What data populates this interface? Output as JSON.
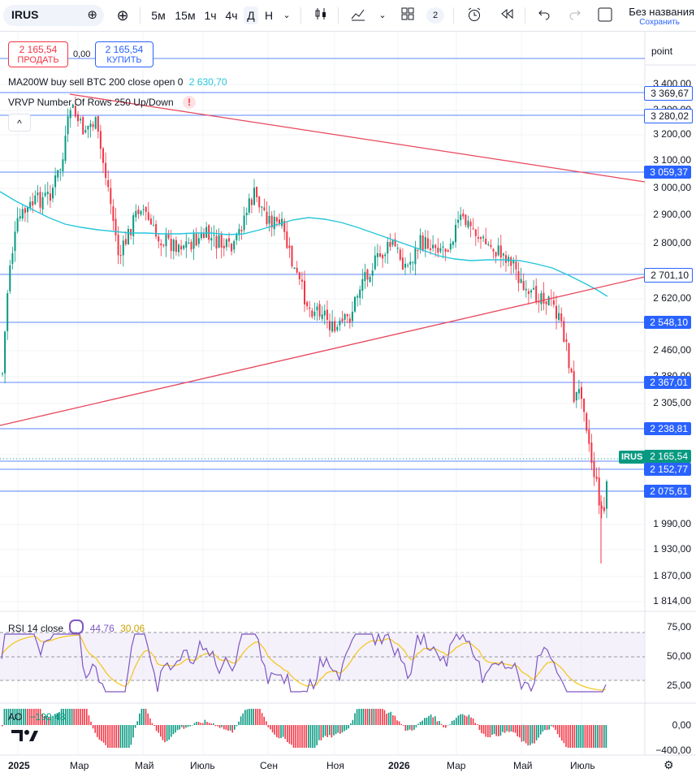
{
  "toolbar": {
    "symbol": "IRUS",
    "intervals": [
      "5м",
      "15м",
      "1ч",
      "4ч",
      "Д",
      "Н"
    ],
    "selected_interval": "Д",
    "layout_count": "2",
    "layout_name": "Без названия",
    "save_label": "Сохранить",
    "icons": [
      "add-symbol-icon",
      "candles-icon",
      "indicators-icon",
      "templates-icon",
      "alert-icon",
      "replay-icon",
      "undo-icon",
      "redo-icon",
      "fullscreen-icon"
    ]
  },
  "trade": {
    "sell_price": "2 165,54",
    "sell_label": "ПРОДАТЬ",
    "spread": "0,00",
    "buy_price": "2 165,54",
    "buy_label": "КУПИТЬ"
  },
  "overlays": {
    "ma_label": "MA200W buy sell BTC 200 close open 0",
    "ma_value": "2 630,70",
    "vrvp_label": "VRVP Number Of Rows 250 Up/Down",
    "warning": "!",
    "collapse": "^"
  },
  "price_axis": {
    "scale_label": "point",
    "ticks": [
      "3 400,00",
      "3 300,00",
      "3 200,00",
      "3 100,00",
      "3 000,00",
      "2 900,00",
      "2 800,00",
      "2 700,00",
      "2 620,00",
      "2 540,00",
      "2 460,00",
      "2 380,00",
      "2 305,00",
      "2 230,00",
      "2 150,00",
      "2 075,00",
      "1 990,00",
      "1 930,00",
      "1 870,00",
      "1 814,00"
    ],
    "level_tags": [
      "3 369,67",
      "3 280,02",
      "3 059,37",
      "2 701,10",
      "2 548,10",
      "2 367,01",
      "2 238,81",
      "2 152,77",
      "2 075,61"
    ],
    "last_price_symbol": "IRUS",
    "last_price": "2 165,54"
  },
  "rsi": {
    "label": "RSI 14 close",
    "value": "44,76",
    "ma_value": "30,06",
    "ticks": [
      "75,00",
      "50,00",
      "25,00"
    ]
  },
  "ao": {
    "label": "AO",
    "value": "−199,48",
    "ticks": [
      "0,00",
      "−400,00"
    ]
  },
  "time_axis": [
    "2025",
    "Мар",
    "Май",
    "Июль",
    "Сен",
    "Ноя",
    "2026",
    "Мар",
    "Май",
    "Июль"
  ],
  "colors": {
    "up": "#089981",
    "down": "#f23645",
    "ma": "#26c6da",
    "trend": "#e8455b",
    "hline": "#2962ff",
    "rsi": "#7e57c2",
    "rsi_ma": "#f5c518"
  },
  "chart_data": {
    "type": "candlestick",
    "x": [
      "2025-01",
      "2025-02",
      "2025-03",
      "2025-04",
      "2025-05",
      "2025-06",
      "2025-07",
      "2025-08",
      "2025-09",
      "2025-10",
      "2025-11",
      "2025-12",
      "2026-01",
      "2026-02",
      "2026-03",
      "2026-04",
      "2026-05",
      "2026-06",
      "2026-07"
    ],
    "close": [
      2700,
      3050,
      3250,
      2950,
      2800,
      2750,
      2800,
      2780,
      2950,
      2700,
      2550,
      2800,
      2830,
      2800,
      2880,
      2720,
      2620,
      2380,
      2165.54
    ],
    "ma200w": [
      2980,
      2900,
      2880,
      2850,
      2830,
      2820,
      2820,
      2830,
      2860,
      2860,
      2840,
      2800,
      2770,
      2760,
      2780,
      2760,
      2700,
      2630.7,
      2630.7
    ],
    "ylim": [
      1814,
      3400
    ]
  }
}
